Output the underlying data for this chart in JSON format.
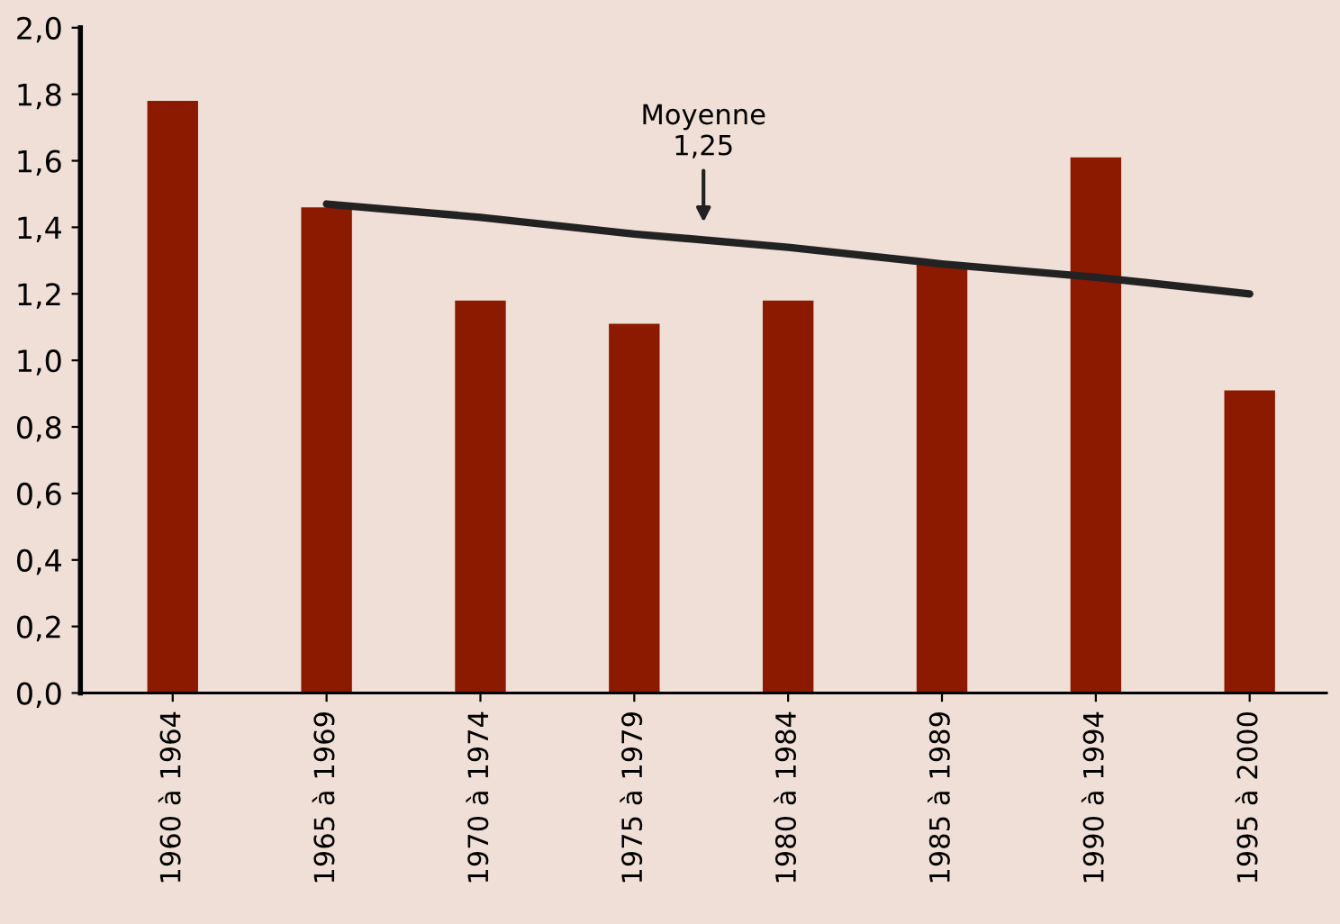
{
  "chart_data": {
    "type": "bar",
    "categories": [
      "1960 à 1964",
      "1965 à 1969",
      "1970 à 1974",
      "1975 à 1979",
      "1980 à 1984",
      "1985 à 1989",
      "1990 à 1994",
      "1995 à 2000"
    ],
    "series": [
      {
        "color": "#8b1a00",
        "values": [
          1.78,
          1.46,
          1.18,
          1.11,
          1.18,
          1.29,
          1.61,
          0.91
        ]
      },
      {
        "type": "line",
        "color": "#222222",
        "values": [
          null,
          1.47,
          1.43,
          1.38,
          1.34,
          1.29,
          1.25,
          1.2
        ]
      }
    ],
    "annotations": [
      "Moyenne\n1,25"
    ],
    "ylim": [
      0,
      2
    ],
    "yticks": [
      {
        "value": 0,
        "label": "0,0"
      },
      {
        "value": 0.2,
        "label": "0,2"
      },
      {
        "value": 0.4,
        "label": "0,4"
      },
      {
        "value": 0.6,
        "label": "0,6"
      },
      {
        "value": 0.8,
        "label": "0,8"
      },
      {
        "value": 1.0,
        "label": "1,0"
      },
      {
        "value": 1.2,
        "label": "1,2"
      },
      {
        "value": 1.4,
        "label": "1,4"
      },
      {
        "value": 1.6,
        "label": "1,6"
      },
      {
        "value": 1.8,
        "label": "1,8"
      },
      {
        "value": 2.0,
        "label": "2,0"
      }
    ],
    "grid": false,
    "legend": false
  }
}
